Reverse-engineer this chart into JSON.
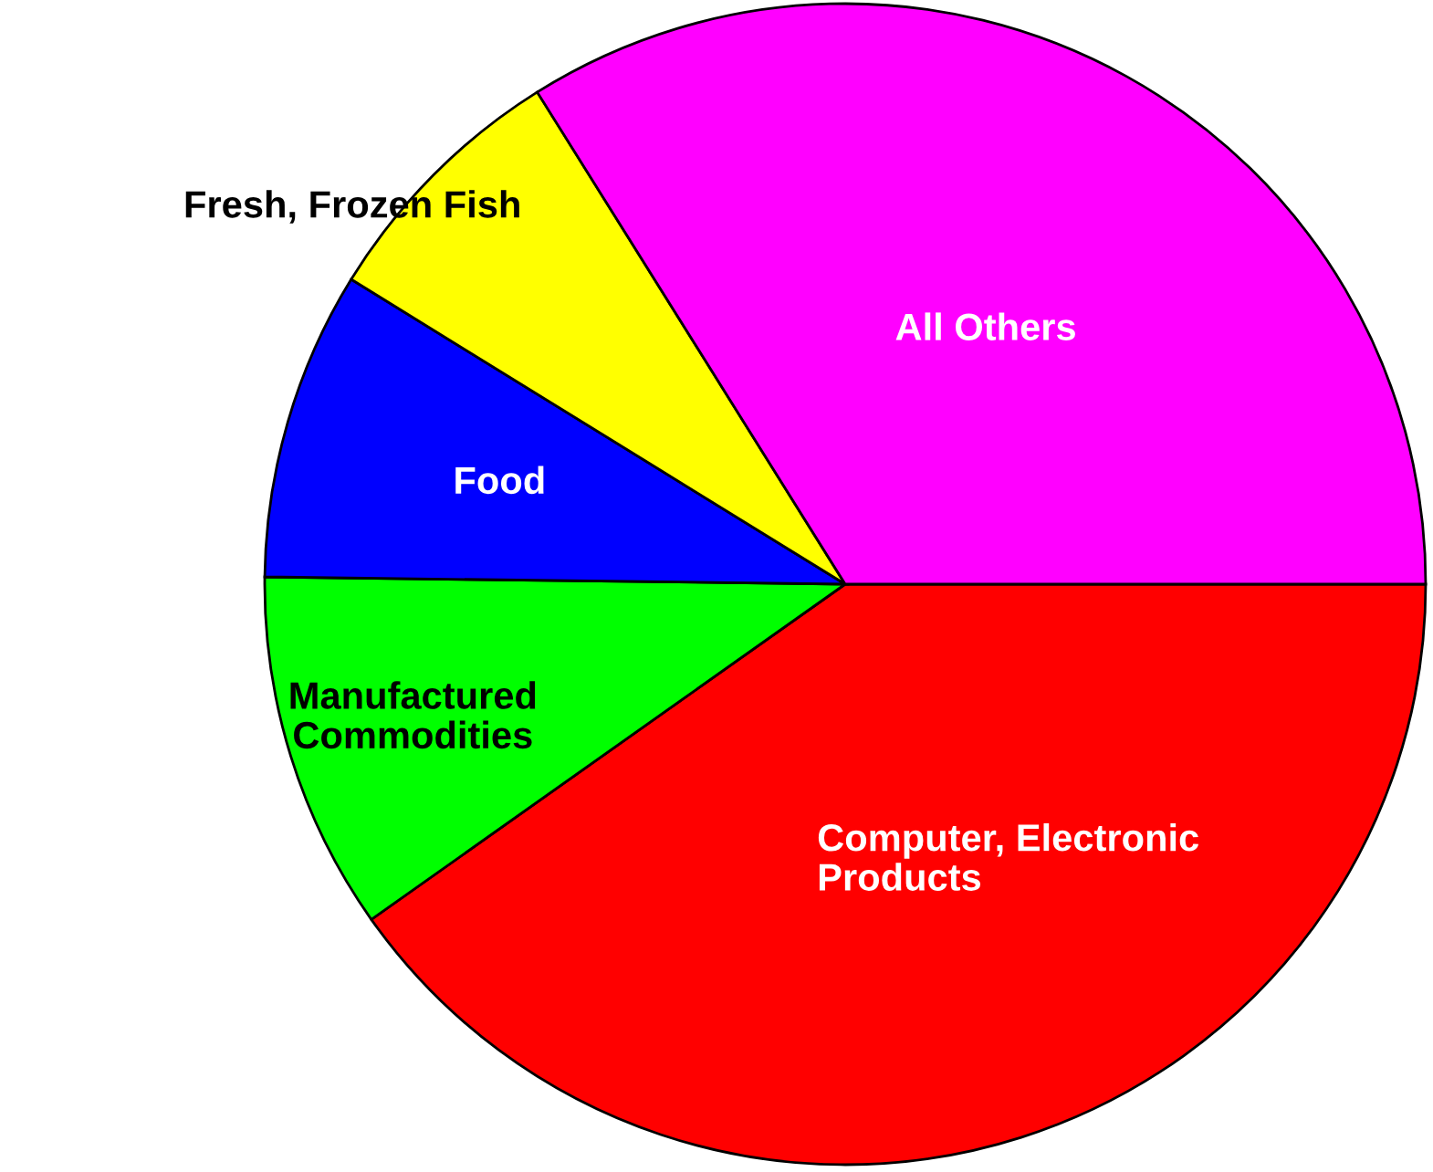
{
  "chart_data": {
    "type": "pie",
    "categories": [
      "Computer, Electronic\nProducts",
      "Manufactured\nCommodities",
      "Food",
      "Fresh, Frozen Fish",
      "All Others"
    ],
    "values": [
      40.2,
      10.0,
      8.6,
      7.3,
      33.9
    ],
    "colors": [
      "#ff0000",
      "#00ff00",
      "#0000ff",
      "#ffff00",
      "#ff00ff"
    ]
  }
}
